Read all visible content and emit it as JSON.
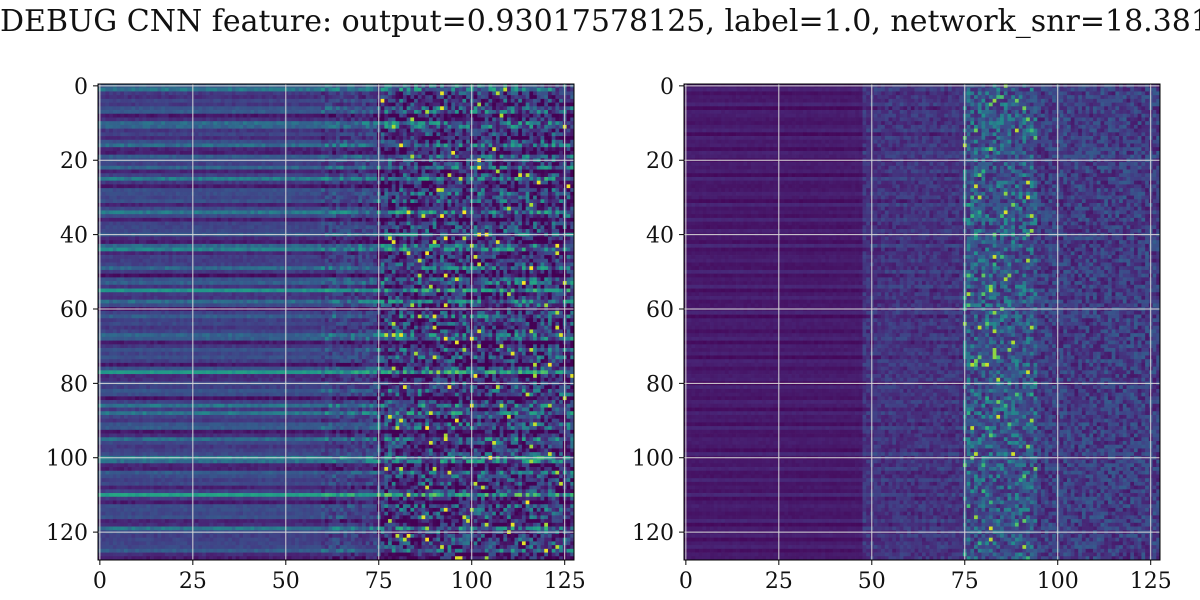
{
  "title": "DEBUG CNN feature: output=0.93017578125, label=1.0, network_snr=18.381",
  "chart_data": [
    {
      "type": "heatmap",
      "rows": 128,
      "cols": 128,
      "colormap": "viridis",
      "grid": true,
      "xlim": [
        0,
        128
      ],
      "ylim": [
        128,
        0
      ],
      "xticks": [
        0,
        25,
        50,
        75,
        100,
        125
      ],
      "yticks": [
        0,
        20,
        40,
        60,
        80,
        100,
        120
      ],
      "description": "left panel"
    },
    {
      "type": "heatmap",
      "rows": 128,
      "cols": 128,
      "colormap": "viridis",
      "grid": true,
      "xlim": [
        0,
        128
      ],
      "ylim": [
        128,
        0
      ],
      "xticks": [
        0,
        25,
        50,
        75,
        100,
        125
      ],
      "yticks": [
        0,
        20,
        40,
        60,
        80,
        100,
        120
      ],
      "description": "right panel"
    }
  ]
}
